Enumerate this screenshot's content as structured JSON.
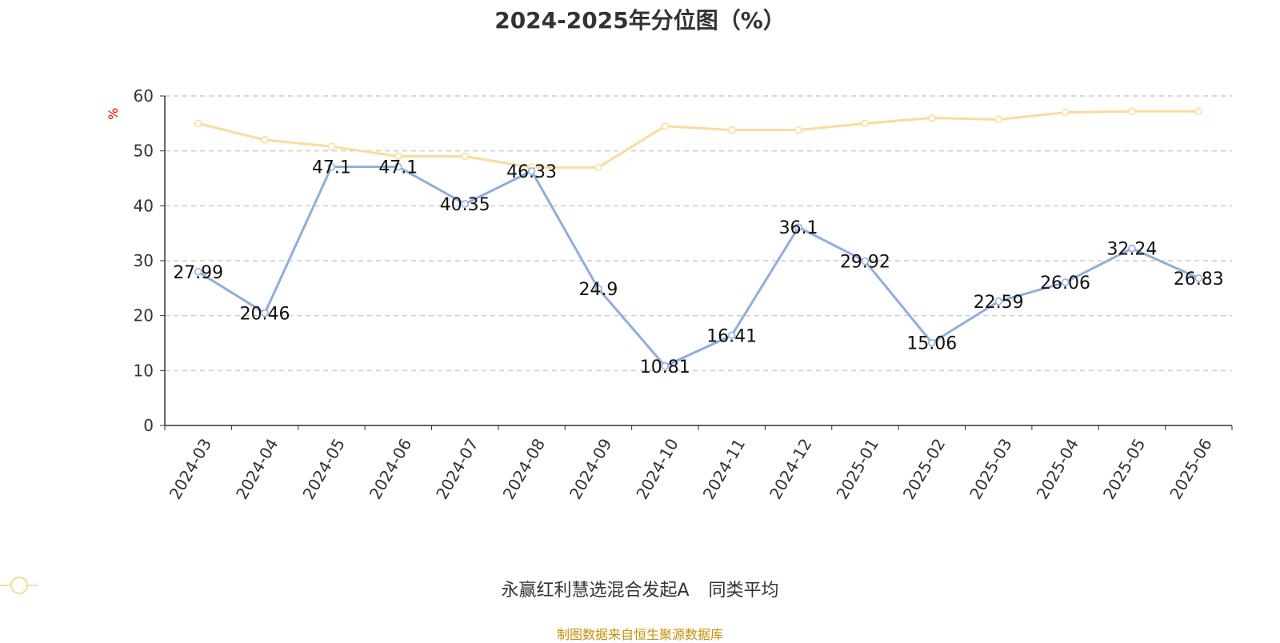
{
  "title": "2024-2025年分位图（%）",
  "chart_data": {
    "type": "line",
    "title": "2024-2025年分位图（%）",
    "ylabel": "%",
    "xlabel": "",
    "ylim": [
      0,
      60
    ],
    "yticks": [
      0,
      10,
      20,
      30,
      40,
      50,
      60
    ],
    "grid": true,
    "legend_position": "bottom",
    "categories": [
      "2024-03",
      "2024-04",
      "2024-05",
      "2024-06",
      "2024-07",
      "2024-08",
      "2024-09",
      "2024-10",
      "2024-11",
      "2024-12",
      "2025-01",
      "2025-02",
      "2025-03",
      "2025-04",
      "2025-05",
      "2025-06"
    ],
    "series": [
      {
        "name": "永赢红利慧选混合发起A",
        "color": "#8eaedc",
        "values": [
          27.99,
          20.46,
          47.1,
          47.1,
          40.35,
          46.33,
          24.9,
          10.81,
          16.41,
          36.1,
          29.92,
          15.06,
          22.59,
          26.06,
          32.24,
          26.83
        ],
        "labels": [
          "27.99",
          "20.46",
          "47.1",
          "47.1",
          "40.35",
          "46.33",
          "24.9",
          "10.81",
          "16.41",
          "36.1",
          "29.92",
          "15.06",
          "22.59",
          "26.06",
          "32.24",
          "26.83"
        ]
      },
      {
        "name": "同类平均",
        "color": "#fcdb9a",
        "values": [
          55.0,
          52.0,
          50.8,
          49.0,
          49.0,
          47.0,
          47.0,
          54.5,
          53.8,
          53.8,
          55.0,
          56.0,
          55.7,
          57.0,
          57.2,
          57.2
        ]
      }
    ]
  },
  "legend": {
    "items": [
      {
        "label": "永赢红利慧选混合发起A",
        "color": "#8eaedc"
      },
      {
        "label": "同类平均",
        "color": "#fcdb9a"
      }
    ]
  },
  "source": "制图数据来自恒生聚源数据库"
}
